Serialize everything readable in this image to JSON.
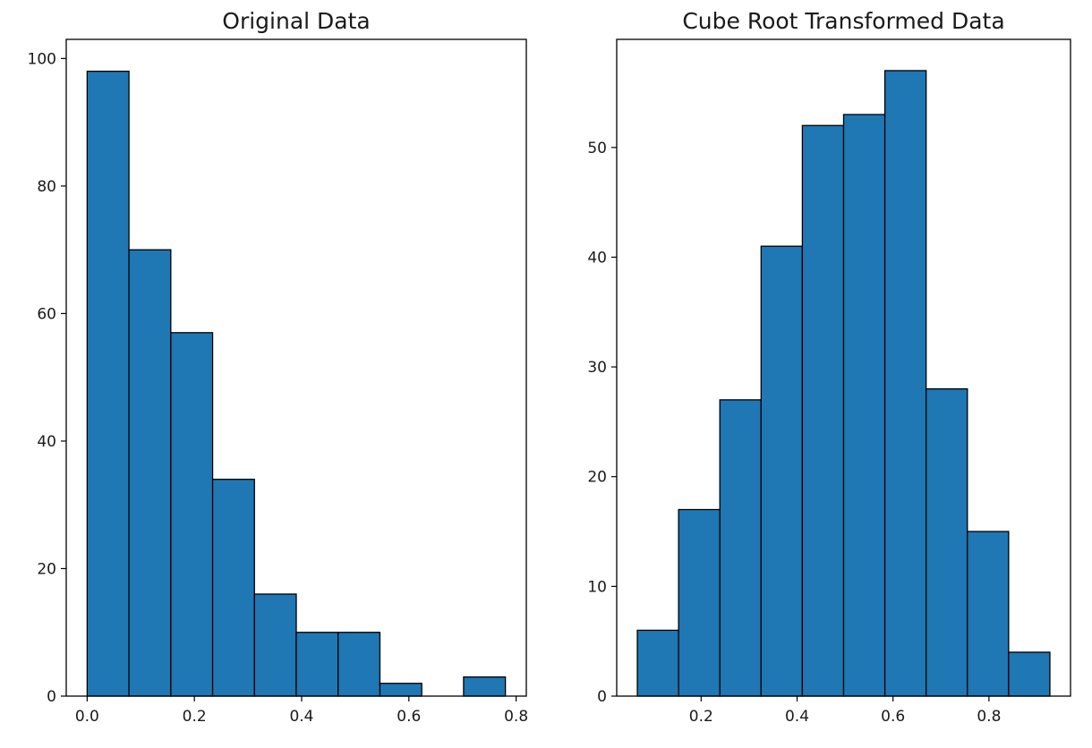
{
  "chart_data": [
    {
      "type": "bar",
      "title": "Original Data",
      "xlabel": "",
      "ylabel": "",
      "bin_edges": [
        0.0,
        0.078,
        0.156,
        0.234,
        0.312,
        0.39,
        0.468,
        0.546,
        0.624,
        0.702,
        0.78
      ],
      "values": [
        98,
        70,
        57,
        34,
        16,
        10,
        10,
        2,
        0,
        3
      ],
      "xlim": [
        -0.039,
        0.819
      ],
      "ylim": [
        0,
        103
      ],
      "xticks": [
        0.0,
        0.2,
        0.4,
        0.6,
        0.8
      ],
      "xtick_labels": [
        "0.0",
        "0.2",
        "0.4",
        "0.6",
        "0.8"
      ],
      "yticks": [
        0,
        20,
        40,
        60,
        80,
        100
      ],
      "ytick_labels": [
        "0",
        "20",
        "40",
        "60",
        "80",
        "100"
      ],
      "grid": false,
      "legend": "none",
      "color": "#1f77b4",
      "edge_color": "#000000"
    },
    {
      "type": "bar",
      "title": "Cube Root Transformed Data",
      "xlabel": "",
      "ylabel": "",
      "bin_edges": [
        0.067,
        0.153,
        0.239,
        0.325,
        0.411,
        0.497,
        0.583,
        0.669,
        0.755,
        0.841,
        0.927
      ],
      "values": [
        6,
        17,
        27,
        41,
        52,
        53,
        57,
        28,
        15,
        4
      ],
      "xlim": [
        0.024,
        0.97
      ],
      "ylim": [
        0,
        59.85
      ],
      "xticks": [
        0.2,
        0.4,
        0.6,
        0.8
      ],
      "xtick_labels": [
        "0.2",
        "0.4",
        "0.6",
        "0.8"
      ],
      "yticks": [
        0,
        10,
        20,
        30,
        40,
        50
      ],
      "ytick_labels": [
        "0",
        "10",
        "20",
        "30",
        "40",
        "50"
      ],
      "grid": false,
      "legend": "none",
      "color": "#1f77b4",
      "edge_color": "#000000"
    }
  ]
}
